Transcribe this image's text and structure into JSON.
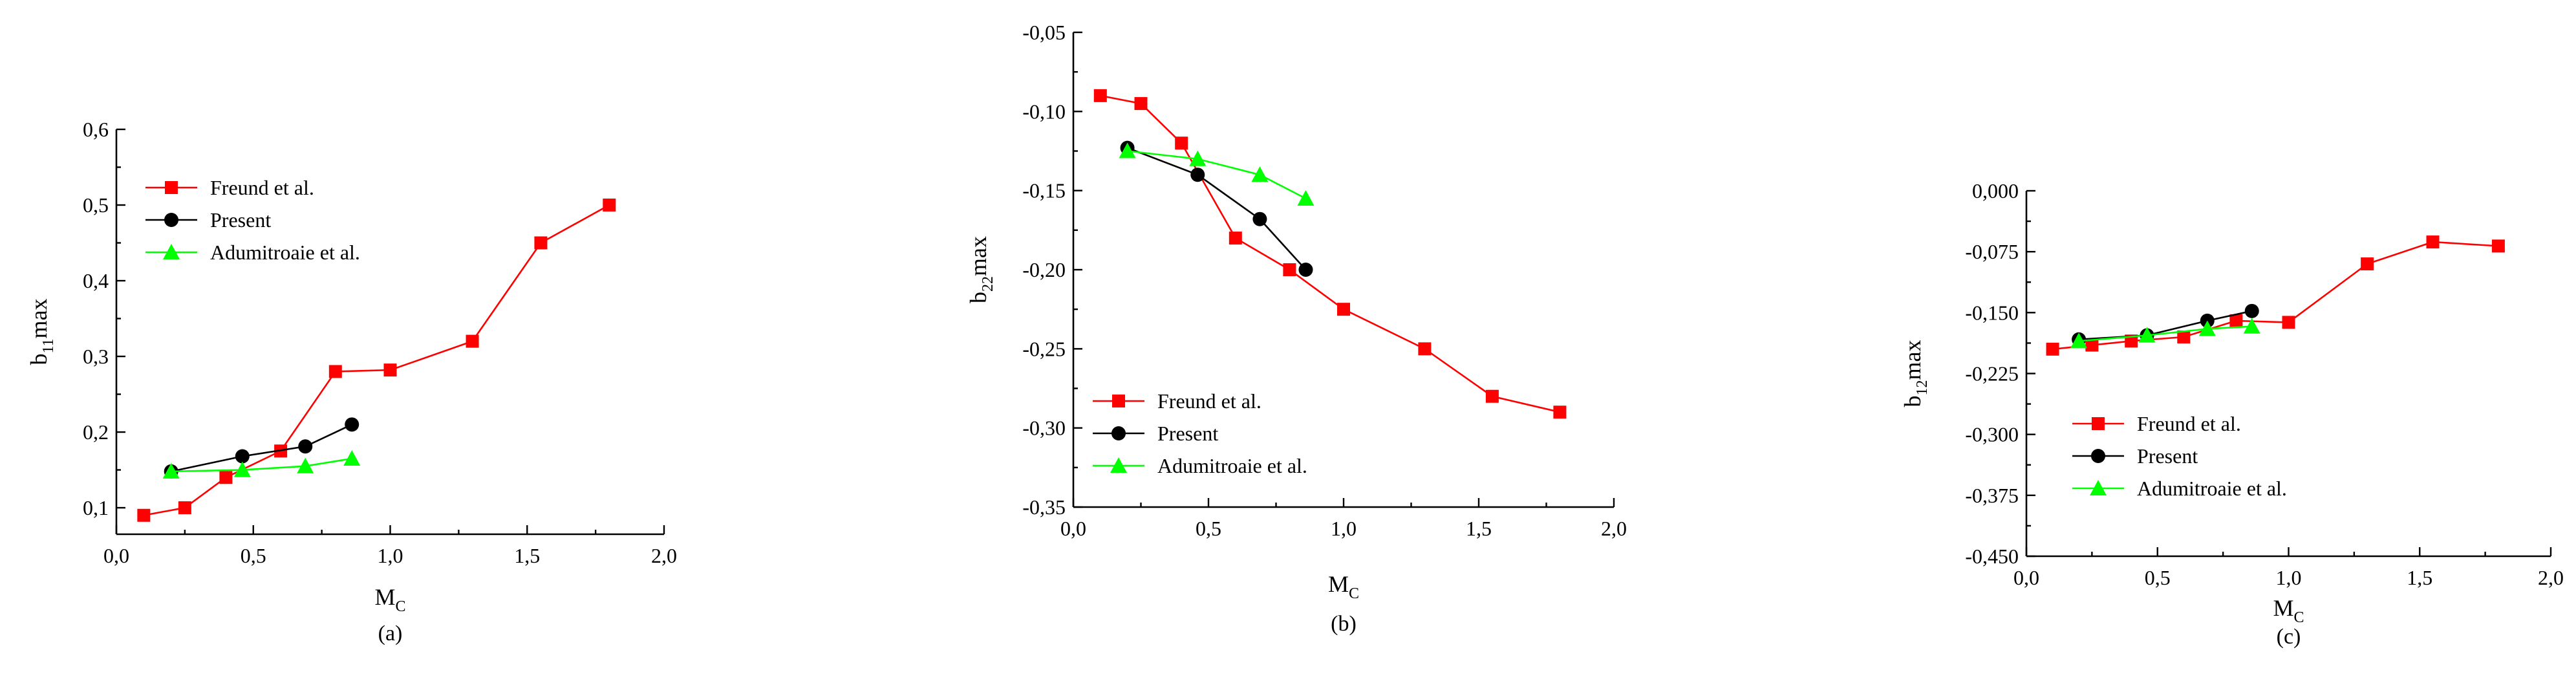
{
  "colors": {
    "freund": "#ff0000",
    "present": "#000000",
    "adumitroaie": "#00ff00"
  },
  "chart_data": [
    {
      "id": "a",
      "type": "line",
      "panel_label": "(a)",
      "xlabel": {
        "main": "M",
        "sub": "C",
        "suffix": ""
      },
      "ylabel": {
        "main": "b",
        "sub": "11",
        "suffix": "max"
      },
      "xlim": [
        0.0,
        2.0
      ],
      "ylim": [
        0.065,
        0.6
      ],
      "xticks": [
        0.0,
        0.5,
        1.0,
        1.5,
        2.0
      ],
      "xtick_labels": [
        "0,0",
        "0,5",
        "1,0",
        "1,5",
        "2,0"
      ],
      "yticks": [
        0.1,
        0.2,
        0.3,
        0.4,
        0.5,
        0.6
      ],
      "ytick_labels": [
        "0,1",
        "0,2",
        "0,3",
        "0,4",
        "0,5",
        "0,6"
      ],
      "legend_position": "top-left",
      "series": [
        {
          "name": "Freund et al.",
          "marker": "square",
          "color_key": "freund",
          "x": [
            0.1,
            0.25,
            0.4,
            0.6,
            0.8,
            1.0,
            1.3,
            1.55,
            1.8
          ],
          "y": [
            0.09,
            0.1,
            0.14,
            0.175,
            0.28,
            0.282,
            0.32,
            0.45,
            0.5
          ]
        },
        {
          "name": "Present",
          "marker": "circle",
          "color_key": "present",
          "x": [
            0.2,
            0.46,
            0.69,
            0.86
          ],
          "y": [
            0.148,
            0.168,
            0.181,
            0.21
          ]
        },
        {
          "name": "Adumitroaie et al.",
          "marker": "triangle",
          "color_key": "adumitroaie",
          "x": [
            0.2,
            0.46,
            0.69,
            0.86
          ],
          "y": [
            0.148,
            0.15,
            0.155,
            0.165
          ]
        }
      ]
    },
    {
      "id": "b",
      "type": "line",
      "panel_label": "(b)",
      "xlabel": {
        "main": "M",
        "sub": "C",
        "suffix": ""
      },
      "ylabel": {
        "main": "b",
        "sub": "22",
        "suffix": "max"
      },
      "xlim": [
        0.0,
        2.0
      ],
      "ylim": [
        -0.35,
        -0.05
      ],
      "xticks": [
        0.0,
        0.5,
        1.0,
        1.5,
        2.0
      ],
      "xtick_labels": [
        "0,0",
        "0,5",
        "1,0",
        "1,5",
        "2,0"
      ],
      "yticks": [
        -0.35,
        -0.3,
        -0.25,
        -0.2,
        -0.15,
        -0.1,
        -0.05
      ],
      "ytick_labels": [
        "-0,35",
        "-0,30",
        "-0,25",
        "-0,20",
        "-0,15",
        "-0,10",
        "-0,05"
      ],
      "legend_position": "bottom-left",
      "series": [
        {
          "name": "Freund et al.",
          "marker": "square",
          "color_key": "freund",
          "x": [
            0.1,
            0.25,
            0.4,
            0.6,
            0.8,
            1.0,
            1.3,
            1.55,
            1.8
          ],
          "y": [
            -0.09,
            -0.095,
            -0.12,
            -0.18,
            -0.2,
            -0.225,
            -0.25,
            -0.28,
            -0.29
          ]
        },
        {
          "name": "Present",
          "marker": "circle",
          "color_key": "present",
          "x": [
            0.2,
            0.46,
            0.69,
            0.86
          ],
          "y": [
            -0.123,
            -0.14,
            -0.168,
            -0.2
          ]
        },
        {
          "name": "Adumitroaie et al.",
          "marker": "triangle",
          "color_key": "adumitroaie",
          "x": [
            0.2,
            0.46,
            0.69,
            0.86
          ],
          "y": [
            -0.125,
            -0.13,
            -0.14,
            -0.155
          ]
        }
      ]
    },
    {
      "id": "c",
      "type": "line",
      "panel_label": "(c)",
      "xlabel": {
        "main": "M",
        "sub": "C",
        "suffix": ""
      },
      "ylabel": {
        "main": "b",
        "sub": "12",
        "suffix": "max"
      },
      "xlim": [
        0.0,
        2.0
      ],
      "ylim": [
        -0.45,
        0.0
      ],
      "xticks": [
        0.0,
        0.5,
        1.0,
        1.5,
        2.0
      ],
      "xtick_labels": [
        "0,0",
        "0,5",
        "1,0",
        "1,5",
        "2,0"
      ],
      "yticks": [
        -0.45,
        -0.375,
        -0.3,
        -0.225,
        -0.15,
        -0.075,
        0.0
      ],
      "ytick_labels": [
        "-0,450",
        "-0,375",
        "-0,300",
        "-0,225",
        "-0,150",
        "-0,075",
        "0,000"
      ],
      "legend_position": "bottom-left",
      "series": [
        {
          "name": "Freund et al.",
          "marker": "square",
          "color_key": "freund",
          "x": [
            0.1,
            0.25,
            0.4,
            0.6,
            0.8,
            1.0,
            1.3,
            1.55,
            1.8
          ],
          "y": [
            -0.195,
            -0.19,
            -0.185,
            -0.18,
            -0.16,
            -0.162,
            -0.09,
            -0.063,
            -0.068
          ]
        },
        {
          "name": "Present",
          "marker": "circle",
          "color_key": "present",
          "x": [
            0.2,
            0.46,
            0.69,
            0.86
          ],
          "y": [
            -0.183,
            -0.178,
            -0.16,
            -0.148
          ]
        },
        {
          "name": "Adumitroaie et al.",
          "marker": "triangle",
          "color_key": "adumitroaie",
          "x": [
            0.2,
            0.46,
            0.69,
            0.86
          ],
          "y": [
            -0.185,
            -0.178,
            -0.17,
            -0.167
          ]
        }
      ]
    }
  ]
}
